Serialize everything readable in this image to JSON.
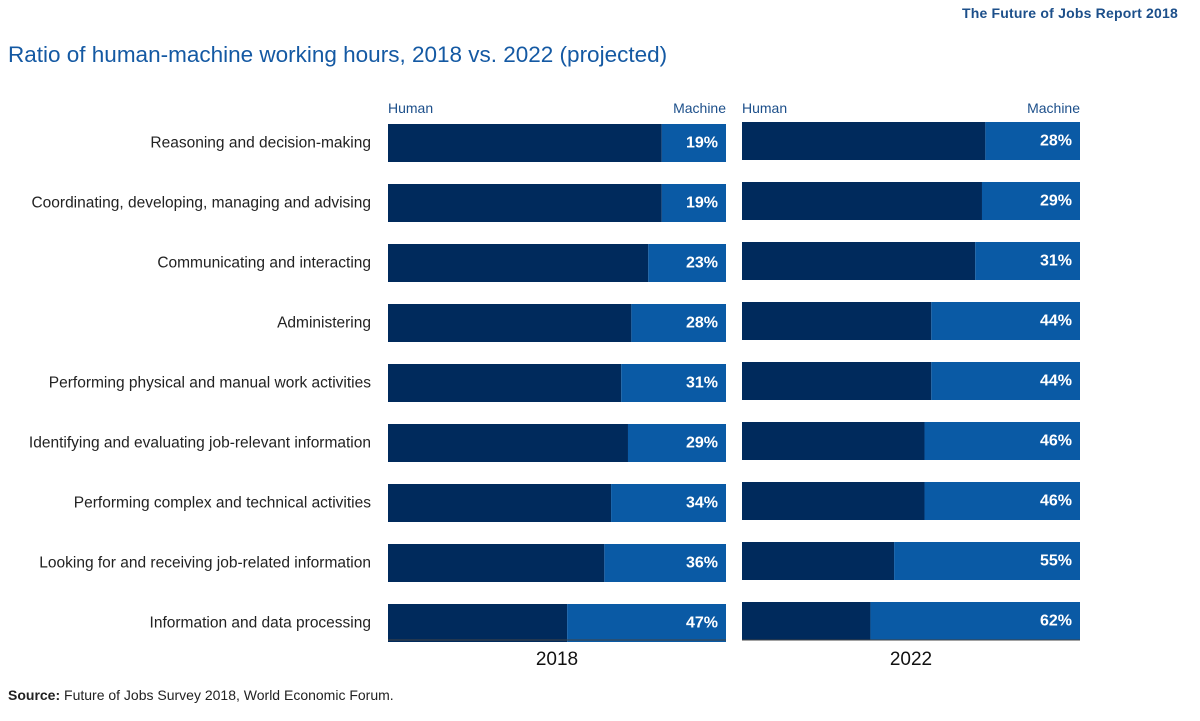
{
  "header": {
    "report_name": "The Future of Jobs Report 2018",
    "title": "Ratio of human-machine working hours, 2018 vs. 2022 (projected)"
  },
  "footer": {
    "source_label": "Source:",
    "source_text": " Future of Jobs Survey 2018, World Economic Forum."
  },
  "colors": {
    "human": "#002a5c",
    "machine": "#0a5aa5",
    "title": "#1459a3",
    "legend": "#1c4f8a"
  },
  "chart_data": {
    "type": "bar",
    "orientation": "horizontal",
    "stacked": true,
    "percent_scale": true,
    "xlim": [
      0,
      100
    ],
    "categories": [
      "Reasoning and decision-making",
      "Coordinating, developing, managing and advising",
      "Communicating and interacting",
      "Administering",
      "Performing physical and manual work activities",
      "Identifying and evaluating job-relevant information",
      "Performing complex and technical activities",
      "Looking for and receiving job-related information",
      "Information and data processing"
    ],
    "panels": [
      {
        "label": "2018",
        "series": [
          {
            "name": "Human",
            "values": [
              81,
              81,
              77,
              72,
              69,
              71,
              66,
              64,
              53
            ]
          },
          {
            "name": "Machine",
            "values": [
              19,
              19,
              23,
              28,
              31,
              29,
              34,
              36,
              47
            ]
          }
        ],
        "data_labels": [
          "19%",
          "19%",
          "23%",
          "28%",
          "31%",
          "29%",
          "34%",
          "36%",
          "47%"
        ]
      },
      {
        "label": "2022",
        "series": [
          {
            "name": "Human",
            "values": [
              72,
              71,
              69,
              56,
              56,
              54,
              54,
              45,
              38
            ]
          },
          {
            "name": "Machine",
            "values": [
              28,
              29,
              31,
              44,
              44,
              46,
              46,
              55,
              62
            ]
          }
        ],
        "data_labels": [
          "28%",
          "29%",
          "31%",
          "44%",
          "44%",
          "46%",
          "46%",
          "55%",
          "62%"
        ]
      }
    ],
    "legend": [
      "Human",
      "Machine"
    ],
    "legend_position": "top of each panel",
    "grid": false
  }
}
